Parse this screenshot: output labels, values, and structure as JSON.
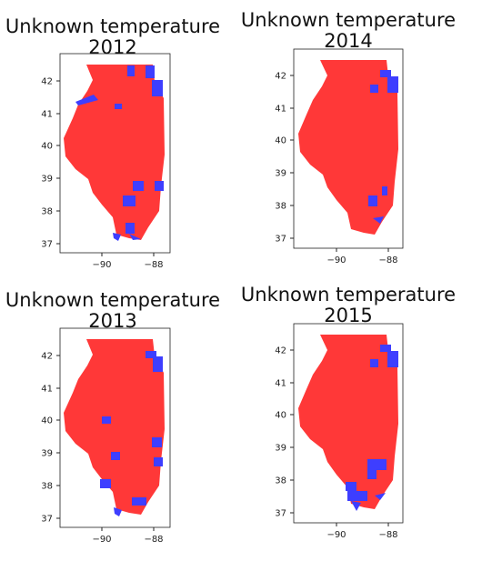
{
  "colors": {
    "red": "#ff3838",
    "blue": "#3e3eff",
    "border": "#ff8a8a"
  },
  "axis": {
    "x_ticks": [
      "−90",
      "−88"
    ],
    "y_ticks": [
      "42",
      "41",
      "40",
      "39",
      "38",
      "37"
    ]
  },
  "panels": [
    {
      "id": "p2012",
      "title_line1": "Unknown temperature",
      "title_line2": "2012",
      "unknown_counties": [
        "northwest-river",
        "north-central",
        "chicago-lakeshore",
        "northeast-border",
        "east-central",
        "southeast",
        "southern-tip"
      ]
    },
    {
      "id": "p2014",
      "title_line1": "Unknown temperature",
      "title_line2": "2014",
      "unknown_counties": [
        "chicago-lakeshore",
        "north-central",
        "southeast",
        "southern-tip"
      ]
    },
    {
      "id": "p2013",
      "title_line1": "Unknown temperature",
      "title_line2": "2013",
      "unknown_counties": [
        "chicago-lakeshore",
        "west-central",
        "central",
        "east-central",
        "southwest",
        "southern-tip"
      ]
    },
    {
      "id": "p2015",
      "title_line1": "Unknown temperature",
      "title_line2": "2015",
      "unknown_counties": [
        "chicago-lakeshore",
        "north-central",
        "southeast",
        "southern-cluster"
      ]
    }
  ]
}
